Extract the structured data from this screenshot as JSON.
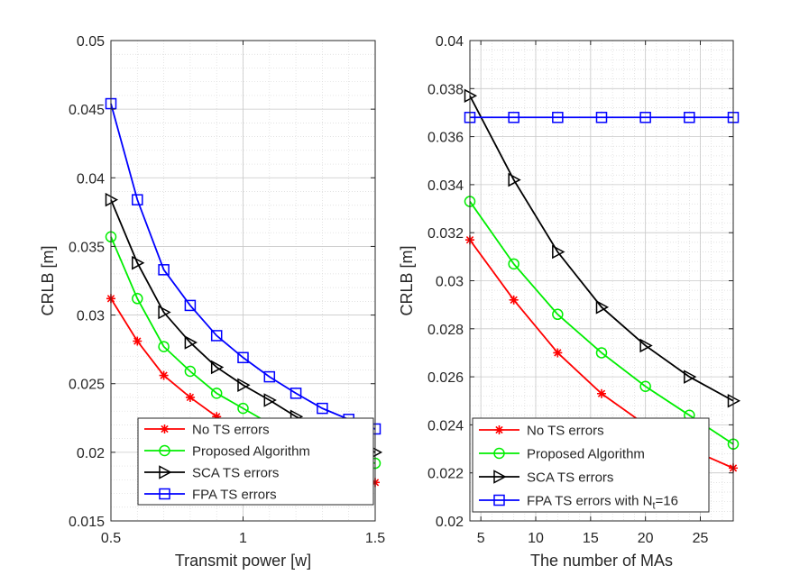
{
  "chart_data": [
    {
      "type": "line",
      "xlabel": "Transmit power [w]",
      "ylabel": "CRLB [m]",
      "xlim": [
        0.5,
        1.5
      ],
      "ylim": [
        0.015,
        0.05
      ],
      "xticks": [
        0.5,
        1,
        1.5
      ],
      "xtick_labels": [
        "0.5",
        "1",
        "1.5"
      ],
      "yticks": [
        0.015,
        0.02,
        0.025,
        0.03,
        0.035,
        0.04,
        0.045,
        0.05
      ],
      "ytick_labels": [
        "0.015",
        "0.02",
        "0.025",
        "0.03",
        "0.035",
        "0.04",
        "0.045",
        "0.05"
      ],
      "grid": true,
      "minor_grid": true,
      "legend_position": "bottom-right",
      "x": [
        0.5,
        0.6,
        0.7,
        0.8,
        0.9,
        1.0,
        1.1,
        1.2,
        1.3,
        1.4,
        1.5
      ],
      "series": [
        {
          "name": "No TS errors",
          "color": "#ff0000",
          "marker": "asterisk",
          "values": [
            0.0312,
            0.0281,
            0.0256,
            0.024,
            0.0226,
            0.0213,
            0.0203,
            0.0195,
            0.0189,
            0.0184,
            0.0178
          ]
        },
        {
          "name": "Proposed Algorithm",
          "color": "#00ee00",
          "marker": "circle",
          "values": [
            0.0357,
            0.0312,
            0.0277,
            0.0259,
            0.0243,
            0.0232,
            0.0221,
            0.0212,
            0.0205,
            0.0197,
            0.0192
          ]
        },
        {
          "name": "SCA TS errors",
          "color": "#000000",
          "marker": "triangle-right",
          "values": [
            0.0384,
            0.0338,
            0.0302,
            0.028,
            0.0262,
            0.0249,
            0.0238,
            0.0226,
            0.0217,
            0.0209,
            0.02
          ]
        },
        {
          "name": "FPA TS errors",
          "color": "#0000ff",
          "marker": "square",
          "values": [
            0.0454,
            0.0384,
            0.0333,
            0.0307,
            0.0285,
            0.0269,
            0.0255,
            0.0243,
            0.0232,
            0.0224,
            0.0217
          ]
        }
      ]
    },
    {
      "type": "line",
      "xlabel": "The number of MAs",
      "ylabel": "CRLB [m]",
      "xlim": [
        4,
        28
      ],
      "ylim": [
        0.02,
        0.04
      ],
      "xticks": [
        5,
        10,
        15,
        20,
        25
      ],
      "xtick_labels": [
        "5",
        "10",
        "15",
        "20",
        "25"
      ],
      "yticks": [
        0.02,
        0.022,
        0.024,
        0.026,
        0.028,
        0.03,
        0.032,
        0.034,
        0.036,
        0.038,
        0.04
      ],
      "ytick_labels": [
        "0.02",
        "0.022",
        "0.024",
        "0.026",
        "0.028",
        "0.03",
        "0.032",
        "0.034",
        "0.036",
        "0.038",
        "0.04"
      ],
      "grid": true,
      "minor_grid": true,
      "legend_position": "bottom-left",
      "x": [
        4,
        8,
        12,
        16,
        20,
        24,
        28
      ],
      "series": [
        {
          "name": "No TS errors",
          "color": "#ff0000",
          "marker": "asterisk",
          "values": [
            0.0317,
            0.0292,
            0.027,
            0.0253,
            0.024,
            0.023,
            0.0222
          ]
        },
        {
          "name": "Proposed Algorithm",
          "color": "#00ee00",
          "marker": "circle",
          "values": [
            0.0333,
            0.0307,
            0.0286,
            0.027,
            0.0256,
            0.0244,
            0.0232
          ]
        },
        {
          "name": "SCA TS errors",
          "color": "#000000",
          "marker": "triangle-right",
          "values": [
            0.0377,
            0.0342,
            0.0312,
            0.0289,
            0.0273,
            0.026,
            0.025
          ]
        },
        {
          "name": "FPA TS errors with N",
          "name_subscript": "t",
          "name_suffix": "=16",
          "color": "#0000ff",
          "marker": "square",
          "values": [
            0.0368,
            0.0368,
            0.0368,
            0.0368,
            0.0368,
            0.0368,
            0.0368
          ]
        }
      ]
    }
  ]
}
